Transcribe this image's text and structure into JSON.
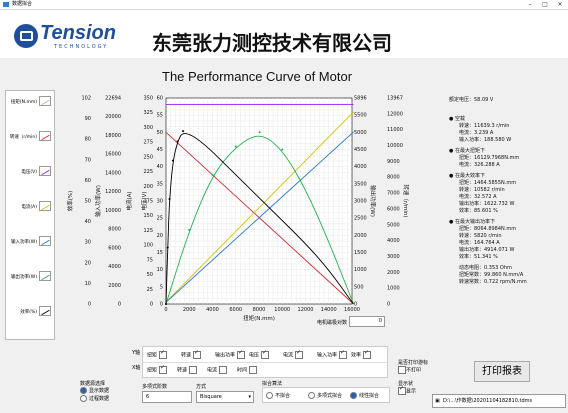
{
  "window": {
    "title": "数据拟合"
  },
  "header": {
    "logo_text": "Tension",
    "logo_sub": "TECHNOLOGY",
    "company": "东莞张力测控技术有限公司"
  },
  "chart_title": "The Performance Curve of Motor",
  "legend": [
    {
      "label": "扭矩(N.mm)",
      "color": "#c8b89a"
    },
    {
      "label": "转速（r/min)",
      "color": "#d62728"
    },
    {
      "label": "电压(V)",
      "color": "#a020f0"
    },
    {
      "label": "电流(A)",
      "color": "#d4c200"
    },
    {
      "label": "输入功率(W)",
      "color": "#1f77d4"
    },
    {
      "label": "输出功率(W)",
      "color": "#22b14c"
    },
    {
      "label": "效率(%)",
      "color": "#000000"
    }
  ],
  "axes": {
    "eff": {
      "title": "效率(%)",
      "ticks": [
        "102",
        "90",
        "80",
        "70",
        "60",
        "50",
        "40",
        "30",
        "20",
        "10",
        "0"
      ]
    },
    "pin": {
      "title": "输入功率(W)",
      "ticks": [
        "22694",
        "20000",
        "18000",
        "16000",
        "14000",
        "12000",
        "10000",
        "8000",
        "6000",
        "4000",
        "2000",
        "0"
      ]
    },
    "cur": {
      "title": "电流(A)",
      "ticks": [
        "350",
        "325",
        "300",
        "275",
        "250",
        "225",
        "200",
        "175",
        "150",
        "125",
        "100",
        "75",
        "50",
        "25",
        "0"
      ]
    },
    "volt": {
      "title": "电压(V)",
      "ticks": [
        "60",
        "55",
        "50",
        "45",
        "40",
        "35",
        "30",
        "25",
        "20",
        "15",
        "10",
        "5",
        "0"
      ]
    },
    "x": {
      "title": "扭矩(N.mm)",
      "ticks": [
        "0",
        "2000",
        "4000",
        "6000",
        "8000",
        "10000",
        "12000",
        "14000",
        "16000"
      ]
    },
    "pout": {
      "title": "输出功率(W)",
      "ticks": [
        "5896",
        "5500",
        "5000",
        "4500",
        "4000",
        "3500",
        "3000",
        "2500",
        "2000",
        "1500",
        "1000",
        "500",
        "0"
      ]
    },
    "speed": {
      "title": "转速（r/min)",
      "ticks": [
        "13967",
        "12000",
        "11000",
        "10000",
        "9000",
        "8000",
        "7000",
        "6000",
        "5000",
        "4000",
        "3000",
        "2000",
        "1000",
        "0"
      ]
    }
  },
  "chart_data": {
    "type": "line",
    "x_label": "扭矩(N.mm)",
    "x_range": [
      0,
      16130
    ],
    "series": [
      {
        "name": "转速（r/min)",
        "color": "#d62728",
        "x": [
          0,
          16130
        ],
        "y": [
          11639,
          0
        ]
      },
      {
        "name": "电流(A)",
        "color": "#d4c200",
        "x": [
          0,
          16130
        ],
        "y": [
          3.239,
          326.3
        ]
      },
      {
        "name": "电压(V)",
        "color": "#a020f0",
        "x": [
          0,
          16130
        ],
        "y": [
          58.09,
          58.09
        ]
      },
      {
        "name": "输入功率(W)",
        "color": "#1f77d4",
        "x": [
          0,
          16130
        ],
        "y": [
          188,
          18954
        ]
      },
      {
        "name": "输出功率(W)",
        "color": "#22b14c",
        "x": [
          0,
          2000,
          4000,
          6000,
          8065,
          10000,
          12000,
          14000,
          16130
        ],
        "y": [
          0,
          2120,
          3695,
          4509,
          4914,
          4420,
          3300,
          1790,
          0
        ]
      },
      {
        "name": "效率(%)",
        "color": "#000000",
        "x": [
          0,
          150,
          300,
          600,
          1000,
          1465,
          3000,
          6000,
          9000,
          12000,
          14000,
          16130
        ],
        "y": [
          0,
          28,
          52,
          71,
          80.5,
          85.6,
          81,
          64,
          47,
          30,
          17,
          0
        ]
      }
    ]
  },
  "info": {
    "rated_voltage": "额定电压：58.09 V",
    "sections": [
      {
        "title": "空载",
        "lines": [
          "转速：11639.3 r/min",
          "电流：3.239 A",
          "输入功率：188.580 W"
        ]
      },
      {
        "title": "在最大扭矩下",
        "lines": [
          "扭矩：16129.7968N.mm",
          "电流：326.288 A"
        ]
      },
      {
        "title": "在最大效率下",
        "lines": [
          "扭矩：1464.5855N.mm",
          "转速：10582  r/min",
          "电流：32.572 A",
          "输出功率：1622.732 W",
          "效率：85.601 %"
        ]
      },
      {
        "title": "在最大输出功率下",
        "lines": [
          "扭矩：8064.8984N.mm",
          "转速：5820  r/min",
          "电流：164.764 A",
          "输出功率：4914.071 W",
          "效率：51.341 %"
        ]
      }
    ],
    "params": [
      "动态电阻：0.353 Ohm",
      "扭矩常数：99.860 N.mm/A",
      "转速常数：0.722 rpm/N.mm"
    ]
  },
  "controls": {
    "x_label": "扭矩(N.mm)",
    "motor_no_label": "电机磁极对数",
    "motor_no_value": "0",
    "y_axis_label": "Y轴",
    "x_axis_label": "X轴",
    "y_items": [
      {
        "label": "扭矩",
        "checked": true
      },
      {
        "label": "转速",
        "checked": true
      },
      {
        "label": "输出功率",
        "checked": true
      },
      {
        "label": "电压",
        "checked": true
      },
      {
        "label": "电流",
        "checked": true
      },
      {
        "label": "输入功率",
        "checked": true
      },
      {
        "label": "效率",
        "checked": true
      }
    ],
    "x_items": [
      {
        "label": "扭矩",
        "checked": true
      },
      {
        "label": "转速",
        "checked": false
      },
      {
        "label": "电流",
        "checked": false
      },
      {
        "label": "时间",
        "checked": false
      }
    ],
    "data_source_label": "数据源选择",
    "src_options": [
      {
        "label": "显示数据",
        "checked": true
      },
      {
        "label": "过程数据",
        "checked": false
      }
    ],
    "poly_label": "多项式阶数",
    "poly_value": "6",
    "method_label": "方式",
    "method_value": "Bisquare",
    "fit_label": "拟合算法",
    "fit_options": [
      {
        "label": "不拟合",
        "checked": false
      },
      {
        "label": "多项式拟合",
        "checked": false
      },
      {
        "label": "线性拟合",
        "checked": true
      }
    ],
    "print_preview_label": "是否打印游标",
    "print_preview_opt": "不打印",
    "display_label": "显示状",
    "display_opt": "显示",
    "print_button": "打印报表",
    "path_value": "D:\\...\\作数据\\20201104182810.tdms"
  }
}
